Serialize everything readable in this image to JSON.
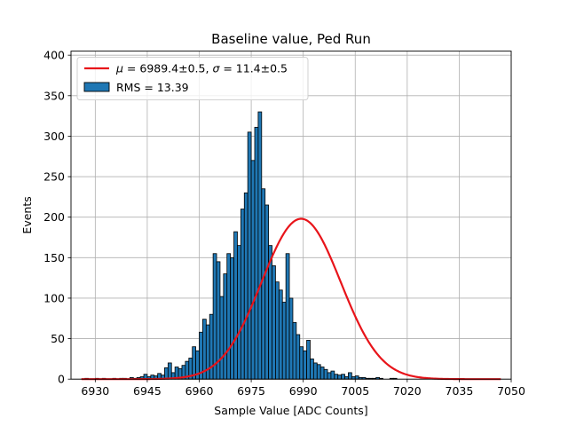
{
  "chart_data": {
    "type": "bar",
    "title": "Baseline value, Ped Run",
    "xlabel": "Sample Value [ADC Counts]",
    "ylabel": "Events",
    "xlim": [
      6923,
      7050
    ],
    "ylim": [
      0,
      405
    ],
    "xticks": [
      6930,
      6945,
      6960,
      6975,
      6990,
      7005,
      7020,
      7035,
      7050
    ],
    "yticks": [
      0,
      50,
      100,
      150,
      200,
      250,
      300,
      350,
      400
    ],
    "grid": true,
    "legend_position": "top-left",
    "bin_start": 6927,
    "bin_width": 1,
    "histogram": {
      "name": "RMS = 13.39",
      "color": "#1f77b4",
      "edge_color": "#000000",
      "values": [
        1,
        0,
        0,
        1,
        0,
        1,
        0,
        0,
        1,
        0,
        1,
        1,
        0,
        2,
        1,
        2,
        3,
        6,
        3,
        5,
        4,
        7,
        5,
        14,
        20,
        8,
        15,
        13,
        17,
        22,
        26,
        40,
        35,
        58,
        74,
        67,
        80,
        155,
        145,
        102,
        130,
        155,
        150,
        182,
        165,
        210,
        230,
        305,
        270,
        311,
        330,
        235,
        215,
        165,
        140,
        120,
        110,
        95,
        155,
        100,
        70,
        55,
        40,
        35,
        48,
        25,
        20,
        18,
        15,
        12,
        8,
        10,
        6,
        5,
        6,
        3,
        8,
        3,
        4,
        2,
        2,
        1,
        1,
        1,
        2,
        1,
        0,
        0,
        1,
        1
      ]
    },
    "fit": {
      "name": "$\\mu = $6989.4±0.5, $\\sigma = $11.4±0.5",
      "label_mu": "μ = ",
      "label_mu_value": "6989.4±0.5,",
      "label_sigma": "σ = ",
      "label_sigma_value": "11.4±0.5",
      "mu": 6989.4,
      "sigma": 11.4,
      "amplitude": 198,
      "color": "#e8141a",
      "x_range": [
        6926,
        7047
      ]
    }
  }
}
